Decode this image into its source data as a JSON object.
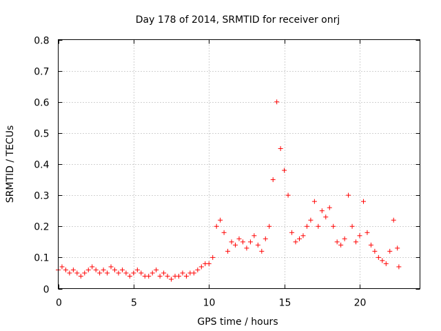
{
  "chart_data": {
    "type": "scatter",
    "title": "Day 178 of 2014, SRMTID for receiver onrj",
    "xlabel": "GPS time / hours",
    "ylabel": "SRMTID / TECUs",
    "xlim": [
      0,
      24
    ],
    "ylim": [
      0,
      0.8
    ],
    "x_ticks": [
      0,
      5,
      10,
      15,
      20
    ],
    "x_tick_labels": [
      "0",
      "5",
      "10",
      "15",
      "20"
    ],
    "y_ticks": [
      0,
      0.1,
      0.2,
      0.3,
      0.4,
      0.5,
      0.6,
      0.7,
      0.8
    ],
    "y_tick_labels": [
      "0",
      "0.1",
      "0.2",
      "0.3",
      "0.4",
      "0.5",
      "0.6",
      "0.7",
      "0.8"
    ],
    "grid": true,
    "marker": "+",
    "series_color": "#ff0000",
    "series": [
      {
        "name": "SRMTID",
        "x": [
          0.0,
          0.25,
          0.5,
          0.75,
          1.0,
          1.25,
          1.5,
          1.75,
          2.0,
          2.25,
          2.5,
          2.75,
          3.0,
          3.25,
          3.5,
          3.75,
          4.0,
          4.25,
          4.5,
          4.75,
          5.0,
          5.25,
          5.5,
          5.75,
          6.0,
          6.25,
          6.5,
          6.75,
          7.0,
          7.25,
          7.5,
          7.75,
          8.0,
          8.25,
          8.5,
          8.75,
          9.0,
          9.25,
          9.5,
          9.75,
          10.0,
          10.25,
          10.5,
          10.75,
          11.0,
          11.25,
          11.5,
          11.75,
          12.0,
          12.25,
          12.5,
          12.75,
          13.0,
          13.25,
          13.5,
          13.75,
          14.0,
          14.25,
          14.5,
          14.75,
          15.0,
          15.25,
          15.5,
          15.75,
          16.0,
          16.25,
          16.5,
          16.75,
          17.0,
          17.25,
          17.5,
          17.75,
          18.0,
          18.25,
          18.5,
          18.75,
          19.0,
          19.25,
          19.5,
          19.75,
          20.0,
          20.25,
          20.5,
          20.75,
          21.0,
          21.25,
          21.5,
          21.75,
          22.0,
          22.25,
          22.5,
          22.6
        ],
        "y": [
          0.06,
          0.07,
          0.06,
          0.05,
          0.06,
          0.05,
          0.04,
          0.05,
          0.06,
          0.07,
          0.06,
          0.05,
          0.06,
          0.05,
          0.07,
          0.06,
          0.05,
          0.06,
          0.05,
          0.04,
          0.05,
          0.06,
          0.05,
          0.04,
          0.04,
          0.05,
          0.06,
          0.04,
          0.05,
          0.04,
          0.03,
          0.04,
          0.04,
          0.05,
          0.04,
          0.05,
          0.05,
          0.06,
          0.07,
          0.08,
          0.08,
          0.1,
          0.2,
          0.22,
          0.18,
          0.12,
          0.15,
          0.14,
          0.16,
          0.15,
          0.13,
          0.15,
          0.17,
          0.14,
          0.12,
          0.16,
          0.2,
          0.35,
          0.6,
          0.45,
          0.38,
          0.3,
          0.18,
          0.15,
          0.16,
          0.17,
          0.2,
          0.22,
          0.28,
          0.2,
          0.25,
          0.23,
          0.26,
          0.2,
          0.15,
          0.14,
          0.16,
          0.3,
          0.2,
          0.15,
          0.17,
          0.28,
          0.18,
          0.14,
          0.12,
          0.1,
          0.09,
          0.08,
          0.12,
          0.22,
          0.13,
          0.07
        ]
      }
    ]
  }
}
